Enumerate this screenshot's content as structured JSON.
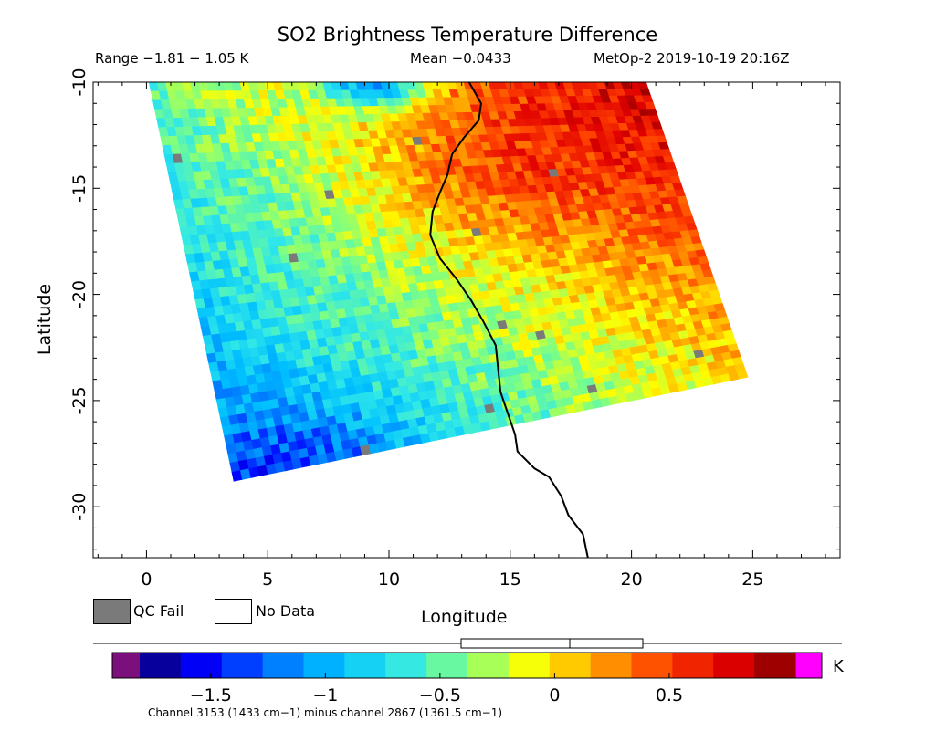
{
  "header": {
    "title": "SO2 Brightness Temperature Difference",
    "range": "Range −1.81 − 1.05 K",
    "mean": "Mean −0.0433",
    "satellite": "MetOp-2 2019-10-19 20:16Z"
  },
  "legend": {
    "qc_fail": "QC Fail",
    "no_data": "No Data",
    "qc_color": "#7a7a7a",
    "nodata_color": "#ffffff"
  },
  "chart_data": {
    "type": "heatmap",
    "title": "SO2 Brightness Temperature Difference",
    "xlabel": "Longitude",
    "ylabel": "Latitude",
    "xlim": [
      -2.2,
      28.6
    ],
    "ylim": [
      -32.4,
      -10.0
    ],
    "x_ticks": [
      0,
      5,
      10,
      15,
      20,
      25
    ],
    "y_ticks": [
      -10,
      -15,
      -20,
      -25,
      -30
    ],
    "swath_corners_lonlat": [
      [
        0.1,
        -10.0
      ],
      [
        20.6,
        -10.0
      ],
      [
        24.8,
        -23.9
      ],
      [
        3.6,
        -28.8
      ]
    ],
    "coastline_lonlat": [
      [
        13.3,
        -10.0
      ],
      [
        13.8,
        -11.0
      ],
      [
        13.7,
        -11.8
      ],
      [
        13.1,
        -12.6
      ],
      [
        12.6,
        -13.4
      ],
      [
        12.4,
        -14.4
      ],
      [
        12.1,
        -15.2
      ],
      [
        11.8,
        -16.1
      ],
      [
        11.7,
        -17.2
      ],
      [
        12.1,
        -18.3
      ],
      [
        12.8,
        -19.3
      ],
      [
        13.4,
        -20.3
      ],
      [
        13.9,
        -21.3
      ],
      [
        14.4,
        -22.4
      ],
      [
        14.5,
        -23.5
      ],
      [
        14.6,
        -24.6
      ],
      [
        14.9,
        -25.6
      ],
      [
        15.2,
        -26.6
      ],
      [
        15.3,
        -27.4
      ],
      [
        16.0,
        -28.2
      ],
      [
        16.6,
        -28.6
      ],
      [
        17.1,
        -29.5
      ],
      [
        17.4,
        -30.4
      ],
      [
        18.0,
        -31.3
      ],
      [
        18.2,
        -32.4
      ]
    ]
  },
  "colorbar": {
    "unit": "K",
    "ticks": [
      -1.5,
      -1,
      -0.5,
      0,
      0.5
    ],
    "tick_labels": [
      "−1.5",
      "−1",
      "−0.5",
      "0",
      "0.5"
    ],
    "range": [
      -1.81,
      1.05
    ],
    "low_color": "#7b0f7b",
    "high_color": "#ff00ff",
    "stops": [
      "#0a0070",
      "#0000ff",
      "#0070ff",
      "#00c0ff",
      "#30e8e8",
      "#80ff80",
      "#ffff00",
      "#ffa000",
      "#ff4000",
      "#e00000",
      "#800000"
    ],
    "note": "Channel 3153 (1433 cm−1) minus channel 2867 (1361.5 cm−1)"
  }
}
